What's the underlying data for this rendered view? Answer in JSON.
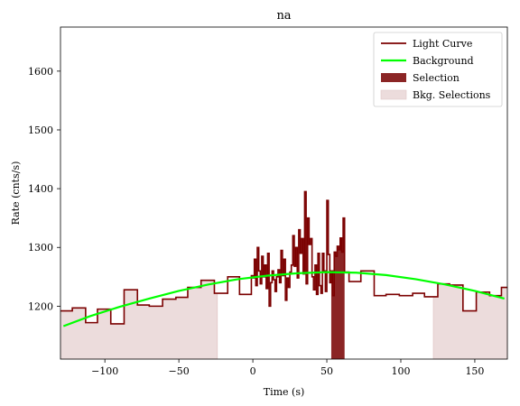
{
  "chart_data": {
    "type": "line",
    "title": "na",
    "xlabel": "Time (s)",
    "ylabel": "Rate (cnts/s)",
    "xlim": [
      -130,
      172
    ],
    "ylim": [
      1110,
      1675
    ],
    "xticks": [
      -100,
      -50,
      0,
      50,
      100,
      150
    ],
    "xtick_labels": [
      "−100",
      "−50",
      "0",
      "50",
      "100",
      "150"
    ],
    "yticks": [
      1200,
      1300,
      1400,
      1500,
      1600
    ],
    "ytick_labels": [
      "1200",
      "1300",
      "1400",
      "1500",
      "1600"
    ],
    "grid": false,
    "legend_position": "top-right",
    "colors": {
      "light_curve": "#7b0000",
      "background": "#00ff00",
      "selection": "#8b2525",
      "bkg_selection": "#ecdcdc"
    },
    "series": [
      {
        "name": "Light Curve",
        "style": "step",
        "x": [
          -130,
          -122,
          -113,
          -105,
          -96,
          -87,
          -78,
          -70,
          -61,
          -52,
          -44,
          -35,
          -26,
          -17,
          -9,
          -1,
          0,
          1,
          2,
          3,
          4,
          5,
          6,
          7,
          8,
          9,
          10,
          11,
          12,
          13,
          14,
          15,
          16,
          17,
          18,
          19,
          20,
          21,
          22,
          23,
          24,
          25,
          26,
          27,
          28,
          29,
          30,
          31,
          32,
          33,
          34,
          35,
          36,
          37,
          38,
          39,
          40,
          41,
          42,
          43,
          44,
          45,
          46,
          47,
          48,
          49,
          50,
          51,
          52,
          53,
          54,
          55,
          56,
          57,
          58,
          59,
          60,
          61,
          62,
          65,
          73,
          82,
          90,
          99,
          108,
          116,
          125,
          133,
          142,
          151,
          160,
          168
        ],
        "y": [
          1192,
          1197,
          1172,
          1195,
          1170,
          1228,
          1202,
          1200,
          1212,
          1215,
          1232,
          1244,
          1222,
          1250,
          1220,
          1252,
          1248,
          1280,
          1235,
          1300,
          1260,
          1238,
          1285,
          1250,
          1270,
          1230,
          1290,
          1200,
          1240,
          1260,
          1245,
          1225,
          1250,
          1262,
          1240,
          1295,
          1252,
          1280,
          1210,
          1248,
          1232,
          1258,
          1270,
          1320,
          1268,
          1300,
          1248,
          1330,
          1290,
          1315,
          1255,
          1395,
          1238,
          1350,
          1305,
          1315,
          1250,
          1228,
          1270,
          1220,
          1290,
          1235,
          1222,
          1290,
          1260,
          1225,
          1380,
          1288,
          1240,
          1260,
          1218,
          1292,
          1285,
          1302,
          1296,
          1316,
          1292,
          1350,
          1258,
          1242,
          1260,
          1218,
          1220,
          1218,
          1222,
          1216,
          1238,
          1236,
          1192,
          1224,
          1218,
          1232
        ]
      },
      {
        "name": "Background",
        "style": "curve",
        "x": [
          -128,
          -110,
          -90,
          -70,
          -50,
          -30,
          -10,
          10,
          30,
          50,
          70,
          90,
          110,
          130,
          150,
          170
        ],
        "y": [
          1166,
          1183,
          1199,
          1213,
          1226,
          1237,
          1246,
          1252,
          1256,
          1258,
          1257,
          1253,
          1246,
          1237,
          1226,
          1213
        ]
      }
    ],
    "selection": {
      "name": "Selection",
      "x_start": 53,
      "x_end": 62
    },
    "bkg_selections": {
      "name": "Bkg. Selections",
      "ranges": [
        [
          -130,
          -24
        ],
        [
          122,
          172
        ]
      ]
    }
  }
}
